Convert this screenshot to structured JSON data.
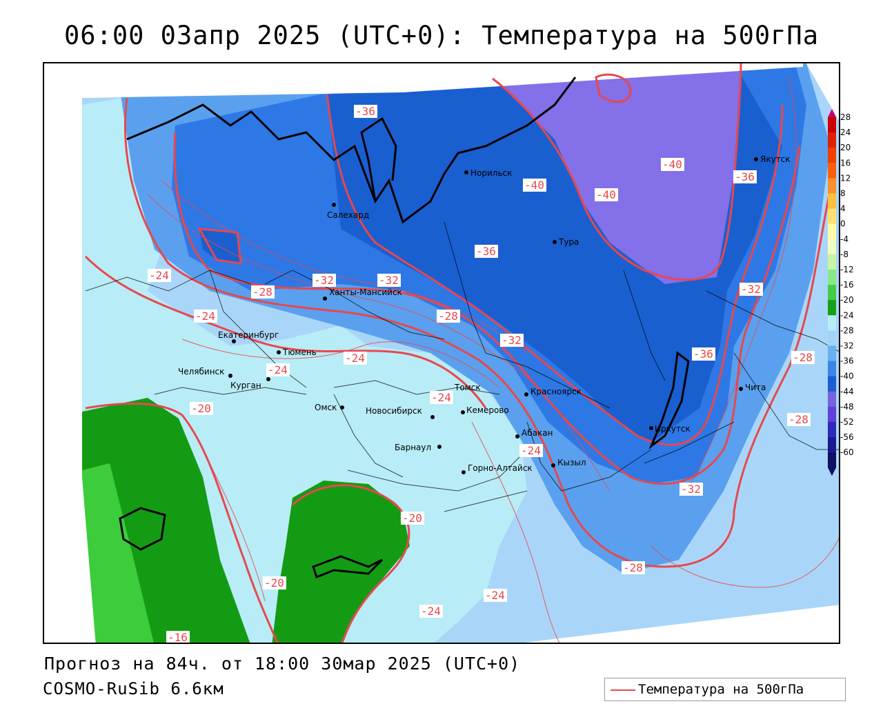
{
  "title": "06:00 03апр 2025 (UTC+0): Температура на 500гПа",
  "footer": {
    "forecast": "Прогноз на 84ч. от 18:00 30мар 2025 (UTC+0)",
    "model": "COSMO-RuSib 6.6км"
  },
  "legend": {
    "label": "Температура на 500гПа",
    "color": "#e8474d"
  },
  "colors": {
    "contour": "#e8474d",
    "t_minus_40": "#8470e8",
    "t_minus_36": "#1a5fd0",
    "t_minus_32": "#2e78e6",
    "t_minus_28": "#5aa0ee",
    "t_minus_24": "#a9d6f8",
    "t_minus_20": "#b8ecf6",
    "t_minus_16": "#139c13",
    "t_minus_12": "#3ccc3c"
  },
  "color_scale": {
    "labels": [
      "28",
      "24",
      "20",
      "16",
      "12",
      "8",
      "4",
      "0",
      "-4",
      "-8",
      "-12",
      "-16",
      "-20",
      "-24",
      "-28",
      "-32",
      "-36",
      "-40",
      "-44",
      "-48",
      "-52",
      "-56",
      "-60"
    ],
    "colors": [
      "#c80070",
      "#cc0000",
      "#e02000",
      "#f04000",
      "#f86010",
      "#fb9030",
      "#fcc040",
      "#fde070",
      "#fffaa8",
      "#f0fcc0",
      "#c8f4a8",
      "#88e888",
      "#44cc44",
      "#16a016",
      "#b6eef8",
      "#a2d4f8",
      "#6ab0f0",
      "#3a86e6",
      "#1c5dd0",
      "#7464e0",
      "#6040d8",
      "#3028b8",
      "#1a1a90",
      "#101060"
    ]
  },
  "cities": [
    {
      "name": "Норильск"
    },
    {
      "name": "Якутск"
    },
    {
      "name": "Салехард"
    },
    {
      "name": "Тура"
    },
    {
      "name": "Ханты-Мансийск"
    },
    {
      "name": "Екатеринбург"
    },
    {
      "name": "Тюмень"
    },
    {
      "name": "Челябинск"
    },
    {
      "name": "Курган"
    },
    {
      "name": "Омск"
    },
    {
      "name": "Новосибирск"
    },
    {
      "name": "Томск"
    },
    {
      "name": "Кемерово"
    },
    {
      "name": "Красноярск"
    },
    {
      "name": "Барнаул"
    },
    {
      "name": "Абакан"
    },
    {
      "name": "Кызыл"
    },
    {
      "name": "Горно-Алтайск"
    },
    {
      "name": "Иркутск"
    },
    {
      "name": "Чита"
    }
  ],
  "isolines": [
    {
      "text": "-36"
    },
    {
      "text": "-40"
    },
    {
      "text": "-40"
    },
    {
      "text": "-36"
    },
    {
      "text": "-40"
    },
    {
      "text": "-36"
    },
    {
      "text": "-24"
    },
    {
      "text": "-32"
    },
    {
      "text": "-32"
    },
    {
      "text": "-28"
    },
    {
      "text": "-24"
    },
    {
      "text": "-28"
    },
    {
      "text": "-32"
    },
    {
      "text": "-24"
    },
    {
      "text": "-24"
    },
    {
      "text": "-24"
    },
    {
      "text": "-20"
    },
    {
      "text": "-24"
    },
    {
      "text": "-36"
    },
    {
      "text": "-32"
    },
    {
      "text": "-28"
    },
    {
      "text": "-32"
    },
    {
      "text": "-28"
    },
    {
      "text": "-20"
    },
    {
      "text": "-20"
    },
    {
      "text": "-24"
    },
    {
      "text": "-24"
    },
    {
      "text": "-28"
    },
    {
      "text": "-16"
    }
  ]
}
